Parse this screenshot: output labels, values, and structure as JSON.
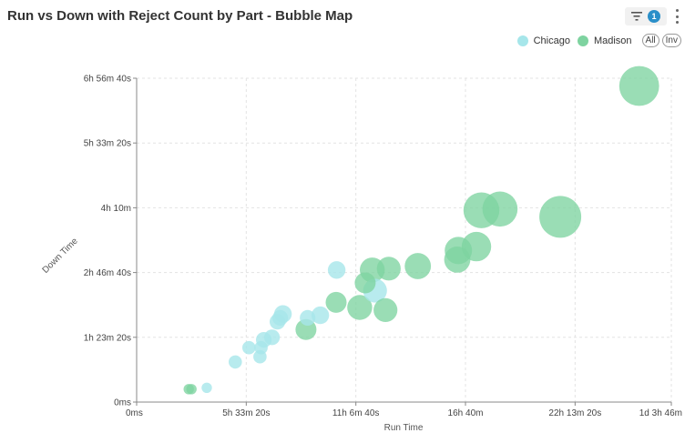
{
  "header": {
    "filter_count": "1"
  },
  "legend": {
    "all_label": "All",
    "inv_label": "Inv"
  },
  "chart_data": {
    "type": "scatter",
    "title": "Run vs Down with Reject Count by Part - Bubble Map",
    "xlabel": "Run Time",
    "ylabel": "Down Time",
    "x_unit": "seconds",
    "y_unit": "seconds",
    "xlim": [
      0,
      97560
    ],
    "ylim": [
      0,
      25000
    ],
    "x_ticks": [
      {
        "value": 0,
        "label": "0ms"
      },
      {
        "value": 20000,
        "label": "5h 33m 20s"
      },
      {
        "value": 40000,
        "label": "11h 6m 40s"
      },
      {
        "value": 60000,
        "label": "16h 40m"
      },
      {
        "value": 80000,
        "label": "22h 13m 20s"
      },
      {
        "value": 97560,
        "label": "1d 3h 46m"
      }
    ],
    "y_ticks": [
      {
        "value": 0,
        "label": "0ms"
      },
      {
        "value": 5000,
        "label": "1h 23m 20s"
      },
      {
        "value": 10000,
        "label": "2h 46m 40s"
      },
      {
        "value": 15000,
        "label": "4h 10m"
      },
      {
        "value": 20000,
        "label": "5h 33m 20s"
      },
      {
        "value": 25000,
        "label": "6h 56m 40s"
      }
    ],
    "grid": true,
    "legend_position": "top-right",
    "series": [
      {
        "name": "Chicago",
        "color": "#a6e6ea",
        "points": [
          {
            "x": 12800,
            "y": 1100,
            "size": 1
          },
          {
            "x": 18000,
            "y": 3100,
            "size": 2
          },
          {
            "x": 20500,
            "y": 4200,
            "size": 2
          },
          {
            "x": 22500,
            "y": 3500,
            "size": 2
          },
          {
            "x": 22700,
            "y": 4200,
            "size": 2
          },
          {
            "x": 23200,
            "y": 4800,
            "size": 3
          },
          {
            "x": 24700,
            "y": 5000,
            "size": 3
          },
          {
            "x": 25700,
            "y": 6200,
            "size": 3
          },
          {
            "x": 26200,
            "y": 6500,
            "size": 3
          },
          {
            "x": 26700,
            "y": 6800,
            "size": 4
          },
          {
            "x": 31200,
            "y": 6500,
            "size": 3
          },
          {
            "x": 33500,
            "y": 6700,
            "size": 4
          },
          {
            "x": 36500,
            "y": 10200,
            "size": 4
          },
          {
            "x": 43500,
            "y": 8600,
            "size": 8
          }
        ]
      },
      {
        "name": "Madison",
        "color": "#7ed3a0",
        "points": [
          {
            "x": 9500,
            "y": 1000,
            "size": 1
          },
          {
            "x": 10000,
            "y": 1000,
            "size": 1
          },
          {
            "x": 30900,
            "y": 5600,
            "size": 6
          },
          {
            "x": 36400,
            "y": 7700,
            "size": 6
          },
          {
            "x": 40700,
            "y": 7300,
            "size": 9
          },
          {
            "x": 41700,
            "y": 9200,
            "size": 6
          },
          {
            "x": 43000,
            "y": 10200,
            "size": 9
          },
          {
            "x": 45400,
            "y": 7100,
            "size": 8
          },
          {
            "x": 46000,
            "y": 10300,
            "size": 8
          },
          {
            "x": 51300,
            "y": 10500,
            "size": 10
          },
          {
            "x": 58700,
            "y": 11700,
            "size": 11
          },
          {
            "x": 58500,
            "y": 11000,
            "size": 10
          },
          {
            "x": 62000,
            "y": 12000,
            "size": 13
          },
          {
            "x": 62900,
            "y": 14800,
            "size": 20
          },
          {
            "x": 66300,
            "y": 14900,
            "size": 19
          },
          {
            "x": 77300,
            "y": 14300,
            "size": 28
          },
          {
            "x": 91700,
            "y": 24400,
            "size": 25
          }
        ]
      }
    ]
  }
}
